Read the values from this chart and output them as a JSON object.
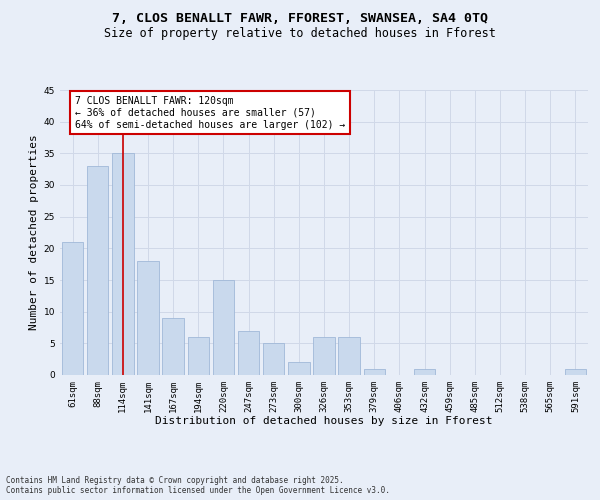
{
  "title1": "7, CLOS BENALLT FAWR, FFOREST, SWANSEA, SA4 0TQ",
  "title2": "Size of property relative to detached houses in Fforest",
  "xlabel": "Distribution of detached houses by size in Fforest",
  "ylabel": "Number of detached properties",
  "categories": [
    "61sqm",
    "88sqm",
    "114sqm",
    "141sqm",
    "167sqm",
    "194sqm",
    "220sqm",
    "247sqm",
    "273sqm",
    "300sqm",
    "326sqm",
    "353sqm",
    "379sqm",
    "406sqm",
    "432sqm",
    "459sqm",
    "485sqm",
    "512sqm",
    "538sqm",
    "565sqm",
    "591sqm"
  ],
  "values": [
    21,
    33,
    35,
    18,
    9,
    6,
    15,
    7,
    5,
    2,
    6,
    6,
    1,
    0,
    1,
    0,
    0,
    0,
    0,
    0,
    1
  ],
  "bar_color": "#c9d9ed",
  "bar_edge_color": "#a0b8d8",
  "red_line_index": 2,
  "annotation_text": "7 CLOS BENALLT FAWR: 120sqm\n← 36% of detached houses are smaller (57)\n64% of semi-detached houses are larger (102) →",
  "annotation_box_color": "#ffffff",
  "annotation_box_edge_color": "#cc0000",
  "grid_color": "#d0d8e8",
  "background_color": "#e8eef8",
  "plot_bg_color": "#e8eef8",
  "ylim": [
    0,
    45
  ],
  "yticks": [
    0,
    5,
    10,
    15,
    20,
    25,
    30,
    35,
    40,
    45
  ],
  "footer_text": "Contains HM Land Registry data © Crown copyright and database right 2025.\nContains public sector information licensed under the Open Government Licence v3.0.",
  "title_fontsize": 9.5,
  "subtitle_fontsize": 8.5,
  "axis_label_fontsize": 8,
  "tick_fontsize": 6.5,
  "annotation_fontsize": 7,
  "footer_fontsize": 5.5
}
